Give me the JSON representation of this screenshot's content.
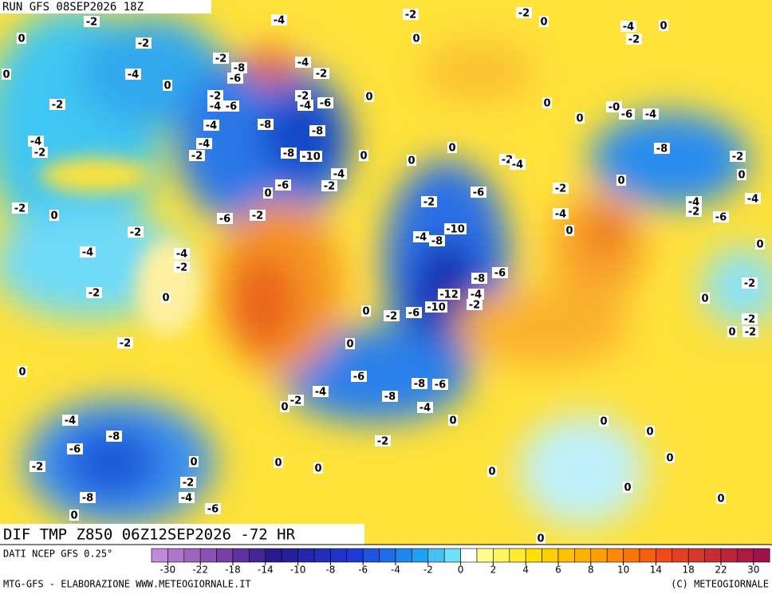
{
  "header": {
    "run": "RUN GFS 08SEP2026 18Z",
    "product": "DIF TMP Z850 06Z12SEP2026 -72 HR"
  },
  "contour_labels": [
    "-2",
    "0",
    "-2",
    "0",
    "-4",
    "0",
    "-2",
    "-4",
    "-2",
    "-2",
    "0",
    "-2",
    "-4",
    "-4",
    "-2",
    "-2",
    "0",
    "-2",
    "0",
    "-4",
    "-8",
    "-6",
    "-2",
    "0",
    "-2",
    "-8",
    "-4",
    "-6",
    "0",
    "-4",
    "-2",
    "-8",
    "-6",
    "-4",
    "-2",
    "-2",
    "-4",
    "-6",
    "-2",
    "-4",
    "-6",
    "0",
    "-4",
    "-8",
    "-8",
    "-4",
    "-2",
    "-8",
    "-10",
    "0",
    "-4",
    "-2",
    "-6",
    "0",
    "-6",
    "-2",
    "-2",
    "-2",
    "0",
    "0",
    "-4",
    "-2",
    "0",
    "0",
    "0",
    "-0",
    "-6",
    "-4",
    "0",
    "0",
    "-2",
    "-4",
    "-8",
    "-2",
    "0",
    "0",
    "-2",
    "-6",
    "-2",
    "-4",
    "-4",
    "-2",
    "-6",
    "-4",
    "0",
    "-10",
    "-4",
    "-8",
    "0",
    "-8",
    "-6",
    "-2",
    "0",
    "-12",
    "-4",
    "-2",
    "-10",
    "-6",
    "-2",
    "0",
    "-2",
    "0",
    "-2",
    "0",
    "-6",
    "-8",
    "-6",
    "-4",
    "-8",
    "-2",
    "0",
    "-4",
    "0",
    "0",
    "0",
    "-2",
    "0",
    "0",
    "0",
    "0",
    "0",
    "0",
    "0"
  ],
  "legend": {
    "source": "DATI NCEP GFS 0.25°",
    "ticks": [
      -30,
      -22,
      -18,
      -14,
      -10,
      -8,
      -6,
      -4,
      -2,
      0,
      2,
      4,
      6,
      8,
      10,
      14,
      18,
      22,
      30
    ]
  },
  "footer": {
    "left": "MTG-GFS - ELABORAZIONE WWW.METEOGIORNALE.IT",
    "right": "(C) METEOGIORNALE"
  }
}
